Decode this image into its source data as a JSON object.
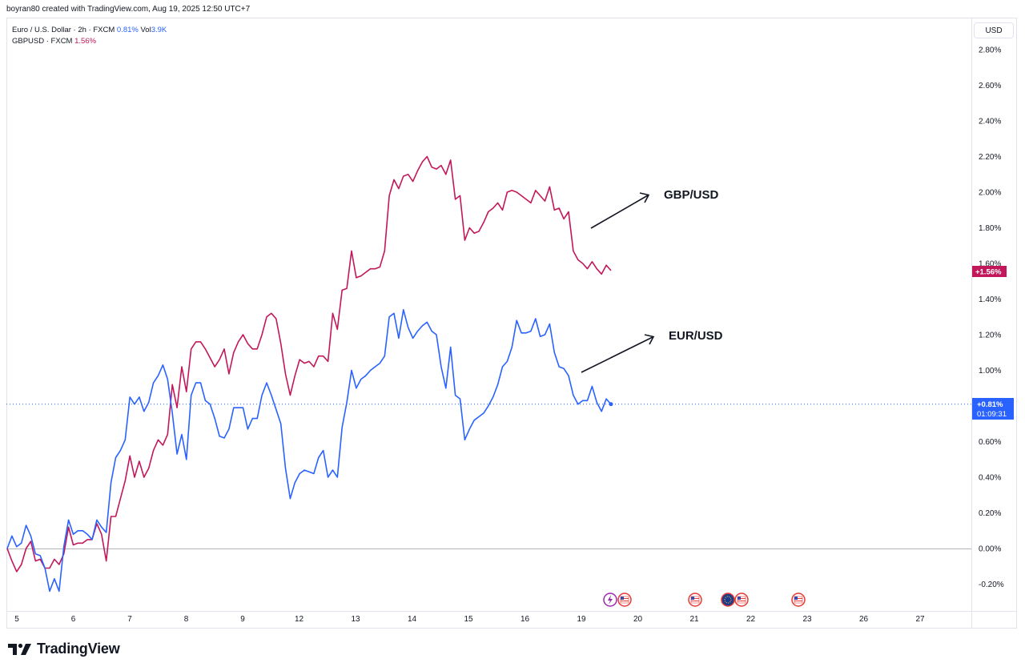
{
  "header": {
    "text": "boyran80 created with TradingView.com, Aug 19, 2025 12:50 UTC+7"
  },
  "legend": {
    "row1_prefix": "Euro / U.S. Dollar · 2h · FXCM",
    "row1_value": "0.81%",
    "row1_vol_label": "Vol",
    "row1_vol_value": "3.9K",
    "row2_prefix": "GBPUSD · FXCM",
    "row2_value": "1.56%"
  },
  "price_scale": {
    "unit_button": "USD"
  },
  "footer": {
    "brand": "TradingView"
  },
  "colors": {
    "eur": "#2962ff",
    "gbp": "#c2185b",
    "grid": "#e0e3eb",
    "zero_line": "#b2b5be"
  },
  "event_icons": [
    "lightning-icon",
    "us-flag-icon",
    "us-flag-icon",
    "eu-flag-icon",
    "us-flag-icon",
    "us-flag-icon"
  ],
  "chart_data": {
    "type": "line",
    "title": "",
    "xlabel": "",
    "ylabel": "",
    "ylim": [
      -0.3,
      3.0
    ],
    "y_ticks": [
      "2.80%",
      "2.60%",
      "2.40%",
      "2.20%",
      "2.00%",
      "1.80%",
      "1.60%",
      "1.40%",
      "1.20%",
      "1.00%",
      "0.60%",
      "0.40%",
      "0.20%",
      "0.00%",
      "-0.20%"
    ],
    "y_tick_values": [
      2.8,
      2.6,
      2.4,
      2.2,
      2.0,
      1.8,
      1.6,
      1.4,
      1.2,
      1.0,
      0.6,
      0.4,
      0.2,
      0.0,
      -0.2
    ],
    "x_ticks": [
      "5",
      "6",
      "7",
      "8",
      "9",
      "12",
      "13",
      "14",
      "15",
      "16",
      "19",
      "20",
      "21",
      "22",
      "23",
      "26",
      "27"
    ],
    "annotations": [
      "GBP/USD",
      "EUR/USD"
    ],
    "last_value_badges": {
      "gbp": "+1.56%",
      "eur": "+0.81%",
      "eur_countdown": "01:09:31"
    },
    "series": [
      {
        "name": "GBPUSD",
        "color": "#c2185b",
        "values": [
          0.0,
          -0.07,
          -0.13,
          -0.09,
          0.0,
          0.04,
          -0.07,
          -0.06,
          -0.11,
          -0.11,
          -0.06,
          -0.09,
          -0.03,
          0.12,
          0.02,
          0.03,
          0.03,
          0.05,
          0.05,
          0.14,
          0.08,
          -0.07,
          0.18,
          0.18,
          0.28,
          0.38,
          0.52,
          0.4,
          0.49,
          0.4,
          0.45,
          0.55,
          0.61,
          0.58,
          0.64,
          0.92,
          0.79,
          1.02,
          0.88,
          1.12,
          1.16,
          1.16,
          1.12,
          1.07,
          1.02,
          1.06,
          1.12,
          0.98,
          1.1,
          1.16,
          1.2,
          1.15,
          1.12,
          1.12,
          1.2,
          1.3,
          1.32,
          1.29,
          1.15,
          0.98,
          0.86,
          0.97,
          1.06,
          1.04,
          1.05,
          1.02,
          1.08,
          1.08,
          1.05,
          1.32,
          1.23,
          1.45,
          1.46,
          1.67,
          1.52,
          1.53,
          1.55,
          1.57,
          1.57,
          1.58,
          1.67,
          1.98,
          2.07,
          2.02,
          2.09,
          2.1,
          2.06,
          2.12,
          2.17,
          2.2,
          2.14,
          2.13,
          2.15,
          2.1,
          2.18,
          1.96,
          1.98,
          1.73,
          1.8,
          1.77,
          1.78,
          1.83,
          1.89,
          1.91,
          1.94,
          1.9,
          2.0,
          2.01,
          2.0,
          1.98,
          1.96,
          1.94,
          2.01,
          1.98,
          1.95,
          2.03,
          1.9,
          1.91,
          1.85,
          1.89,
          1.67,
          1.62,
          1.6,
          1.57,
          1.61,
          1.57,
          1.54,
          1.59,
          1.56
        ]
      },
      {
        "name": "EURUSD",
        "color": "#2962ff",
        "values": [
          0.0,
          0.07,
          0.01,
          0.03,
          0.13,
          0.07,
          -0.03,
          -0.04,
          -0.11,
          -0.24,
          -0.17,
          -0.24,
          0.01,
          0.16,
          0.08,
          0.1,
          0.1,
          0.08,
          0.05,
          0.16,
          0.12,
          0.09,
          0.37,
          0.51,
          0.55,
          0.61,
          0.85,
          0.81,
          0.85,
          0.77,
          0.82,
          0.93,
          0.97,
          1.03,
          0.95,
          0.76,
          0.53,
          0.64,
          0.5,
          0.86,
          0.93,
          0.93,
          0.83,
          0.81,
          0.73,
          0.63,
          0.62,
          0.67,
          0.79,
          0.79,
          0.79,
          0.67,
          0.73,
          0.73,
          0.86,
          0.93,
          0.86,
          0.78,
          0.7,
          0.45,
          0.28,
          0.37,
          0.42,
          0.44,
          0.43,
          0.42,
          0.51,
          0.55,
          0.4,
          0.44,
          0.4,
          0.68,
          0.82,
          1.0,
          0.9,
          0.95,
          0.97,
          1.0,
          1.02,
          1.04,
          1.08,
          1.3,
          1.32,
          1.18,
          1.34,
          1.24,
          1.18,
          1.22,
          1.25,
          1.27,
          1.22,
          1.2,
          1.02,
          0.9,
          1.13,
          0.86,
          0.84,
          0.61,
          0.67,
          0.72,
          0.74,
          0.76,
          0.8,
          0.85,
          0.92,
          1.02,
          1.05,
          1.13,
          1.28,
          1.21,
          1.21,
          1.22,
          1.29,
          1.19,
          1.2,
          1.26,
          1.1,
          1.02,
          1.01,
          0.97,
          0.86,
          0.81,
          0.83,
          0.83,
          0.91,
          0.82,
          0.77,
          0.84,
          0.81
        ]
      }
    ]
  }
}
